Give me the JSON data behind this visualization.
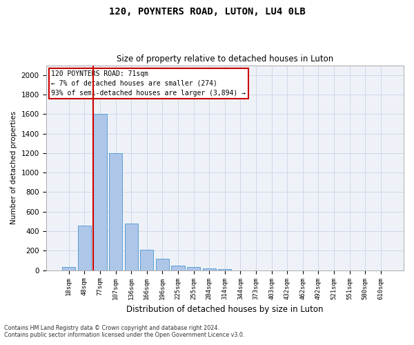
{
  "title": "120, POYNTERS ROAD, LUTON, LU4 0LB",
  "subtitle": "Size of property relative to detached houses in Luton",
  "xlabel": "Distribution of detached houses by size in Luton",
  "ylabel": "Number of detached properties",
  "footnote1": "Contains HM Land Registry data © Crown copyright and database right 2024.",
  "footnote2": "Contains public sector information licensed under the Open Government Licence v3.0.",
  "categories": [
    "18sqm",
    "48sqm",
    "77sqm",
    "107sqm",
    "136sqm",
    "166sqm",
    "196sqm",
    "225sqm",
    "255sqm",
    "284sqm",
    "314sqm",
    "344sqm",
    "373sqm",
    "403sqm",
    "432sqm",
    "462sqm",
    "492sqm",
    "521sqm",
    "551sqm",
    "580sqm",
    "610sqm"
  ],
  "values": [
    30,
    460,
    1600,
    1200,
    480,
    210,
    120,
    45,
    30,
    20,
    10,
    0,
    0,
    0,
    0,
    0,
    0,
    0,
    0,
    0,
    0
  ],
  "bar_color": "#aec6e8",
  "bar_edge_color": "#5a9fd4",
  "highlight_bar_index": 2,
  "highlight_color": "#cc0000",
  "ylim": [
    0,
    2100
  ],
  "yticks": [
    0,
    200,
    400,
    600,
    800,
    1000,
    1200,
    1400,
    1600,
    1800,
    2000
  ],
  "annotation_text": "120 POYNTERS ROAD: 71sqm\n← 7% of detached houses are smaller (274)\n93% of semi-detached houses are larger (3,894) →",
  "annotation_box_color": "#cc0000",
  "grid_color": "#cdd8ea",
  "bg_color": "#eef2f8"
}
